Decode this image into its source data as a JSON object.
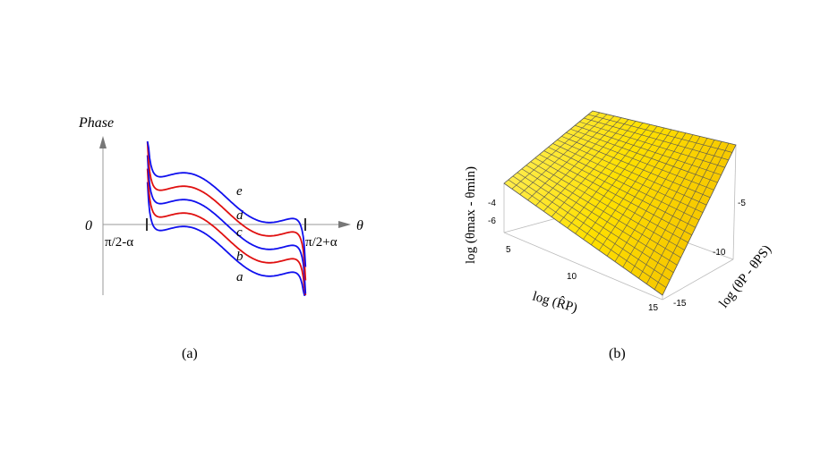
{
  "chart_data": [
    {
      "type": "line",
      "panel_label": "(a)",
      "ylabel": "Phase",
      "xlabel": "θ",
      "origin_label": "0",
      "x_left_label": "π/2-α",
      "x_right_label": "π/2+α",
      "series": [
        {
          "name": "a",
          "color": "#1010ee",
          "offset": -30
        },
        {
          "name": "b",
          "color": "#e01010",
          "offset": -15
        },
        {
          "name": "c",
          "color": "#1010ee",
          "offset": 0
        },
        {
          "name": "d",
          "color": "#e01010",
          "offset": 15
        },
        {
          "name": "e",
          "color": "#1010ee",
          "offset": 30
        }
      ]
    },
    {
      "type": "surface",
      "panel_label": "(b)",
      "zlabel": "log (θmax - θmin)",
      "xlabel": "log (R̂P)",
      "ylabel": "log (θP - θPS)",
      "x_ticks": [
        "5",
        "10",
        "15"
      ],
      "y_ticks": [
        "-5",
        "-10",
        "-15"
      ],
      "z_ticks": [
        "-4",
        "-6"
      ],
      "surface_color": "#ffe000",
      "grid": true
    }
  ]
}
